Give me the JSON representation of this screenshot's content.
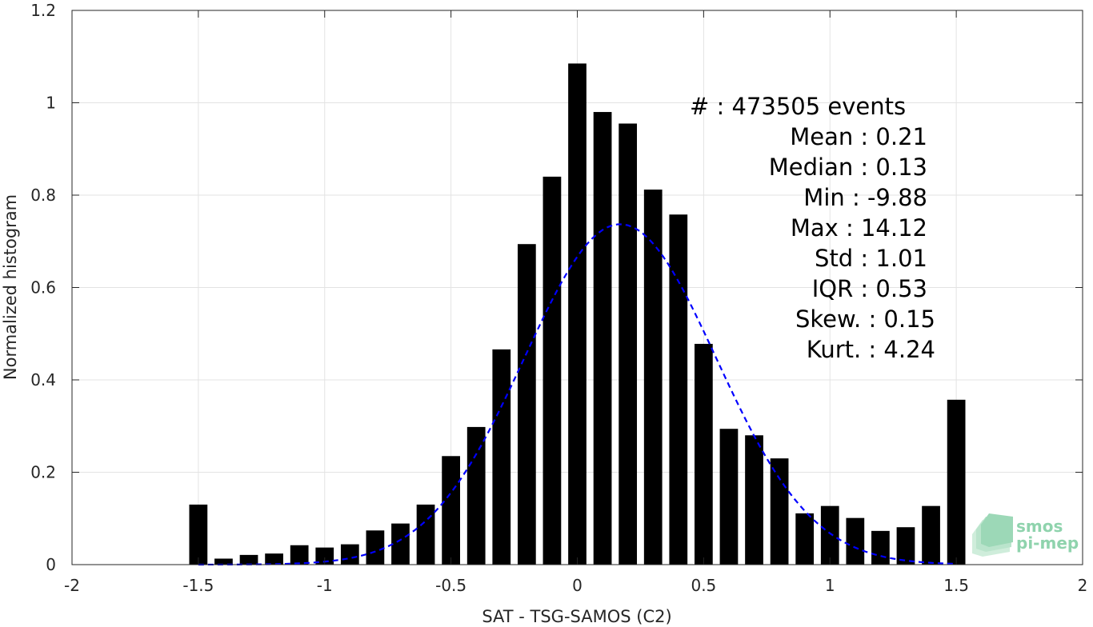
{
  "chart_data": {
    "type": "bar",
    "title": "",
    "xlabel": "SAT - TSG-SAMOS (C2)",
    "ylabel": "Normalized histogram",
    "xlim": [
      -2,
      2
    ],
    "ylim": [
      0,
      1.2
    ],
    "grid": true,
    "bar_color": "#000000",
    "fit_color": "#0000ff",
    "x_ticks": [
      -2,
      -1.5,
      -1,
      -0.5,
      0,
      0.5,
      1,
      1.5,
      2
    ],
    "x_tick_labels": [
      "-2",
      "-1.5",
      "-1",
      "-0.5",
      "0",
      "0.5",
      "1",
      "1.5",
      "2"
    ],
    "y_ticks": [
      0,
      0.2,
      0.4,
      0.6,
      0.8,
      1,
      1.2
    ],
    "y_tick_labels": [
      "0",
      "0.2",
      "0.4",
      "0.6",
      "0.8",
      "1",
      "1.2"
    ],
    "bin_width": 0.1,
    "x": [
      -1.5,
      -1.4,
      -1.3,
      -1.2,
      -1.1,
      -1.0,
      -0.9,
      -0.8,
      -0.7,
      -0.6,
      -0.5,
      -0.4,
      -0.3,
      -0.2,
      -0.1,
      0.0,
      0.1,
      0.2,
      0.3,
      0.4,
      0.5,
      0.6,
      0.7,
      0.8,
      0.9,
      1.0,
      1.1,
      1.2,
      1.3,
      1.4,
      1.5
    ],
    "values": [
      0.13,
      0.013,
      0.021,
      0.024,
      0.042,
      0.037,
      0.044,
      0.074,
      0.089,
      0.13,
      0.235,
      0.298,
      0.466,
      0.694,
      0.84,
      1.085,
      0.98,
      0.955,
      0.812,
      0.758,
      0.478,
      0.294,
      0.28,
      0.23,
      0.111,
      0.127,
      0.101,
      0.073,
      0.081,
      0.127,
      0.357
    ],
    "fit": {
      "type": "gaussian",
      "mean": 0.21,
      "std": 1.01,
      "peak": 0.737,
      "peak_at": 0.17,
      "sigma_shown": 0.38,
      "x_range": [
        -1.5,
        1.5
      ]
    },
    "stats": [
      "#  : 473505 events",
      "Mean : 0.21",
      "Median : 0.13",
      "Min : -9.88",
      "Max : 14.12",
      "Std : 1.01",
      "IQR : 0.53",
      "Skew. : 0.15",
      "Kurt. : 4.24"
    ]
  },
  "logo": {
    "line1": "smos",
    "line2": "pi-mep",
    "color": "#8fd3ad"
  }
}
